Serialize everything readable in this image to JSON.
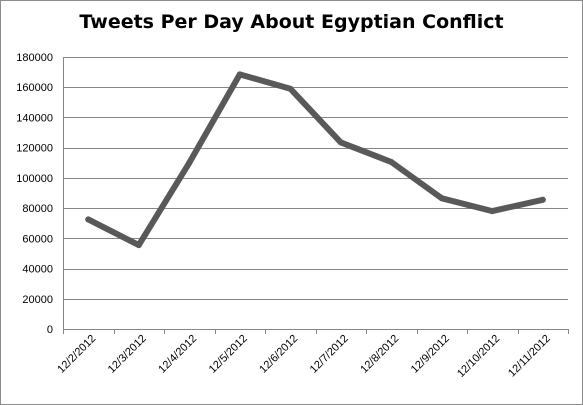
{
  "chart_data": {
    "type": "line",
    "title": "Tweets Per Day About Egyptian Conflict",
    "xlabel": "",
    "ylabel": "",
    "categories": [
      "12/2/2012",
      "12/3/2012",
      "12/4/2012",
      "12/5/2012",
      "12/6/2012",
      "12/7/2012",
      "12/8/2012",
      "12/9/2012",
      "12/10/2012",
      "12/11/2012"
    ],
    "series": [
      {
        "values": [
          72500,
          55500,
          110000,
          168500,
          159000,
          123500,
          110500,
          86500,
          78000,
          85500
        ],
        "color": "#595959"
      }
    ],
    "ylim": [
      0,
      180000
    ],
    "yticks": [
      0,
      20000,
      40000,
      60000,
      80000,
      100000,
      120000,
      140000,
      160000,
      180000
    ],
    "ytick_labels": [
      "0",
      "20000",
      "40000",
      "60000",
      "80000",
      "100000",
      "120000",
      "140000",
      "160000",
      "180000"
    ],
    "grid": "horizontal",
    "legend": "none",
    "gridline_color": "#868686"
  }
}
